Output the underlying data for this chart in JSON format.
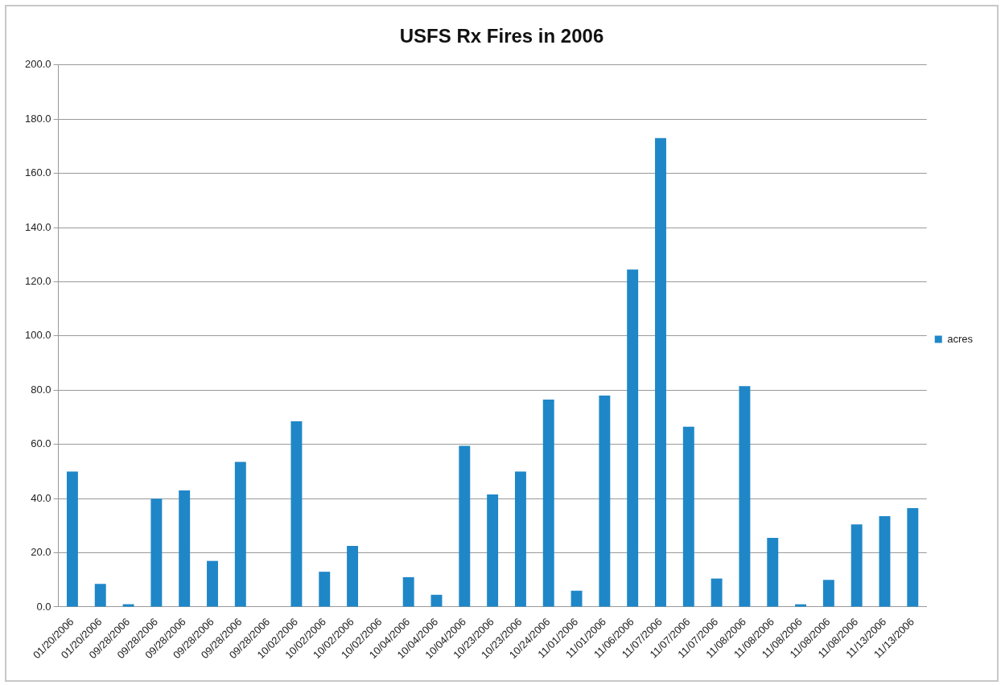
{
  "chart_data": {
    "type": "bar",
    "title": "USFS Rx Fires in 2006",
    "categories": [
      "01/20/2006",
      "01/20/2006",
      "09/28/2006",
      "09/28/2006",
      "09/28/2006",
      "09/28/2006",
      "09/28/2006",
      "09/28/2006",
      "10/02/2006",
      "10/02/2006",
      "10/02/2006",
      "10/02/2006",
      "10/04/2006",
      "10/04/2006",
      "10/04/2006",
      "10/23/2006",
      "10/23/2006",
      "10/24/2006",
      "11/01/2006",
      "11/01/2006",
      "11/06/2006",
      "11/07/2006",
      "11/07/2006",
      "11/07/2006",
      "11/08/2006",
      "11/08/2006",
      "11/08/2006",
      "11/08/2006",
      "11/08/2006",
      "11/13/2006",
      "11/13/2006"
    ],
    "series": [
      {
        "name": "acres",
        "color": "#1f87c8",
        "values": [
          50,
          8.5,
          1,
          40,
          43,
          17,
          53.5,
          0,
          68.5,
          13,
          22.5,
          0,
          11,
          4.5,
          59.5,
          41.5,
          50,
          76.5,
          6,
          78,
          124.5,
          173,
          66.5,
          10.5,
          81.5,
          25.5,
          1,
          10,
          30.5,
          33.5,
          36.5
        ]
      }
    ],
    "ylim": [
      0,
      200
    ],
    "yticks": [
      {
        "value": 0,
        "label": "0.0"
      },
      {
        "value": 20,
        "label": "20.0"
      },
      {
        "value": 40,
        "label": "40.0"
      },
      {
        "value": 60,
        "label": "60.0"
      },
      {
        "value": 80,
        "label": "80.0"
      },
      {
        "value": 100,
        "label": "100.0"
      },
      {
        "value": 120,
        "label": "120.0"
      },
      {
        "value": 140,
        "label": "140.0"
      },
      {
        "value": 160,
        "label": "160.0"
      },
      {
        "value": 180,
        "label": "180.0"
      },
      {
        "value": 200,
        "label": "200.0"
      }
    ],
    "grid": "y",
    "legend": "right"
  }
}
